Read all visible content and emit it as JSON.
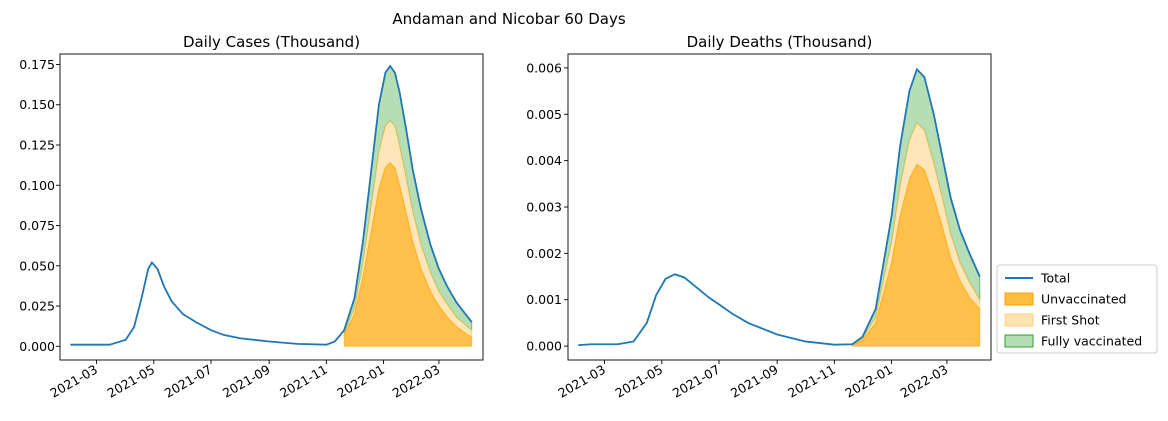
{
  "suptitle": "Andaman and Nicobar 60 Days",
  "colors": {
    "total": "#1f77b4",
    "unvaccinated": "#ffa500",
    "first_shot": "#ffd280",
    "fully_vaccinated": "#2ca02c"
  },
  "legend": {
    "placement": "right-lower",
    "entries": [
      "Total",
      "Unvaccinated",
      "First Shot",
      "Fully vaccinated"
    ]
  },
  "chart_data": [
    {
      "type": "area",
      "title": "Daily Cases (Thousand)",
      "xlabel": "",
      "ylabel": "",
      "x_ticks": [
        "2021-03",
        "2021-05",
        "2021-07",
        "2021-09",
        "2021-11",
        "2022-01",
        "2022-03"
      ],
      "y_ticks": [
        "0.000",
        "0.025",
        "0.050",
        "0.075",
        "0.100",
        "0.125",
        "0.150",
        "0.175"
      ],
      "ylim": [
        -0.0085,
        0.1815
      ],
      "xlim": [
        "2021-01-21",
        "2022-04-17"
      ],
      "grid": false,
      "x": [
        "2021-02-01",
        "2021-02-15",
        "2021-03-01",
        "2021-03-15",
        "2021-04-01",
        "2021-04-10",
        "2021-04-18",
        "2021-04-25",
        "2021-04-29",
        "2021-05-05",
        "2021-05-12",
        "2021-05-20",
        "2021-06-01",
        "2021-06-15",
        "2021-07-01",
        "2021-07-15",
        "2021-08-01",
        "2021-09-01",
        "2021-10-01",
        "2021-11-01",
        "2021-11-10",
        "2021-11-20",
        "2021-12-01",
        "2021-12-10",
        "2021-12-20",
        "2021-12-27",
        "2022-01-03",
        "2022-01-08",
        "2022-01-13",
        "2022-01-18",
        "2022-01-25",
        "2022-02-01",
        "2022-02-10",
        "2022-02-20",
        "2022-03-01",
        "2022-03-10",
        "2022-03-20",
        "2022-04-01",
        "2022-04-05"
      ],
      "series": [
        {
          "name": "Total",
          "values": [
            0.001,
            0.001,
            0.001,
            0.001,
            0.004,
            0.012,
            0.03,
            0.048,
            0.052,
            0.048,
            0.037,
            0.028,
            0.02,
            0.015,
            0.01,
            0.007,
            0.005,
            0.003,
            0.0015,
            0.001,
            0.003,
            0.01,
            0.03,
            0.065,
            0.115,
            0.15,
            0.17,
            0.174,
            0.17,
            0.158,
            0.135,
            0.11,
            0.085,
            0.063,
            0.048,
            0.037,
            0.027,
            0.018,
            0.015
          ]
        },
        {
          "name": "Unvaccinated",
          "start": "2021-11-20",
          "values": [
            null,
            null,
            null,
            null,
            null,
            null,
            null,
            null,
            null,
            null,
            null,
            null,
            null,
            null,
            null,
            null,
            null,
            null,
            null,
            null,
            null,
            0.007,
            0.02,
            0.043,
            0.075,
            0.098,
            0.111,
            0.114,
            0.111,
            0.1,
            0.083,
            0.065,
            0.048,
            0.034,
            0.025,
            0.018,
            0.012,
            0.007,
            0.006
          ]
        },
        {
          "name": "First Shot",
          "start": "2021-11-20",
          "values": [
            null,
            null,
            null,
            null,
            null,
            null,
            null,
            null,
            null,
            null,
            null,
            null,
            null,
            null,
            null,
            null,
            null,
            null,
            null,
            null,
            null,
            0.008,
            0.024,
            0.052,
            0.092,
            0.121,
            0.137,
            0.14,
            0.137,
            0.125,
            0.105,
            0.084,
            0.063,
            0.046,
            0.034,
            0.026,
            0.018,
            0.012,
            0.01
          ]
        },
        {
          "name": "Fully vaccinated",
          "start": "2021-11-20",
          "values": [
            null,
            null,
            null,
            null,
            null,
            null,
            null,
            null,
            null,
            null,
            null,
            null,
            null,
            null,
            null,
            null,
            null,
            null,
            null,
            null,
            null,
            0.01,
            0.03,
            0.065,
            0.115,
            0.15,
            0.17,
            0.174,
            0.17,
            0.158,
            0.135,
            0.11,
            0.085,
            0.063,
            0.048,
            0.037,
            0.027,
            0.018,
            0.015
          ]
        }
      ]
    },
    {
      "type": "area",
      "title": "Daily Deaths (Thousand)",
      "xlabel": "",
      "ylabel": "",
      "x_ticks": [
        "2021-03",
        "2021-05",
        "2021-07",
        "2021-09",
        "2021-11",
        "2022-01",
        "2022-03"
      ],
      "y_ticks": [
        "0.000",
        "0.001",
        "0.002",
        "0.003",
        "0.004",
        "0.005",
        "0.006"
      ],
      "ylim": [
        -0.0003,
        0.0063
      ],
      "xlim": [
        "2021-01-21",
        "2022-04-17"
      ],
      "grid": false,
      "x": [
        "2021-02-01",
        "2021-02-15",
        "2021-03-01",
        "2021-03-15",
        "2021-04-01",
        "2021-04-15",
        "2021-04-25",
        "2021-05-05",
        "2021-05-15",
        "2021-05-25",
        "2021-06-05",
        "2021-06-20",
        "2021-07-01",
        "2021-07-15",
        "2021-08-01",
        "2021-09-01",
        "2021-10-01",
        "2021-11-01",
        "2021-11-20",
        "2021-12-01",
        "2021-12-15",
        "2022-01-01",
        "2022-01-10",
        "2022-01-20",
        "2022-01-28",
        "2022-02-05",
        "2022-02-15",
        "2022-02-25",
        "2022-03-05",
        "2022-03-15",
        "2022-03-25",
        "2022-04-05"
      ],
      "series": [
        {
          "name": "Total",
          "values": [
            2e-05,
            4e-05,
            4e-05,
            4e-05,
            0.0001,
            0.0005,
            0.0011,
            0.00145,
            0.00155,
            0.00148,
            0.0013,
            0.00105,
            0.0009,
            0.0007,
            0.0005,
            0.00025,
            0.0001,
            3e-05,
            4e-05,
            0.0002,
            0.0008,
            0.0028,
            0.0043,
            0.0055,
            0.00597,
            0.0058,
            0.005,
            0.004,
            0.0032,
            0.0025,
            0.002,
            0.0015
          ]
        },
        {
          "name": "Unvaccinated",
          "start": "2021-11-20",
          "values": [
            null,
            null,
            null,
            null,
            null,
            null,
            null,
            null,
            null,
            null,
            null,
            null,
            null,
            null,
            null,
            null,
            null,
            null,
            3e-05,
            0.00012,
            0.0005,
            0.0018,
            0.0028,
            0.0036,
            0.00392,
            0.0038,
            0.0032,
            0.0025,
            0.0019,
            0.0014,
            0.00105,
            0.0008
          ]
        },
        {
          "name": "First Shot",
          "start": "2021-11-20",
          "values": [
            null,
            null,
            null,
            null,
            null,
            null,
            null,
            null,
            null,
            null,
            null,
            null,
            null,
            null,
            null,
            null,
            null,
            null,
            3e-05,
            0.00015,
            0.00063,
            0.00225,
            0.00345,
            0.00445,
            0.00482,
            0.00466,
            0.00395,
            0.00312,
            0.00242,
            0.0018,
            0.00138,
            0.001
          ]
        },
        {
          "name": "Fully vaccinated",
          "start": "2021-11-20",
          "values": [
            null,
            null,
            null,
            null,
            null,
            null,
            null,
            null,
            null,
            null,
            null,
            null,
            null,
            null,
            null,
            null,
            null,
            null,
            4e-05,
            0.0002,
            0.0008,
            0.0028,
            0.0043,
            0.0055,
            0.00597,
            0.0058,
            0.005,
            0.004,
            0.0032,
            0.0025,
            0.002,
            0.0015
          ]
        }
      ]
    }
  ]
}
